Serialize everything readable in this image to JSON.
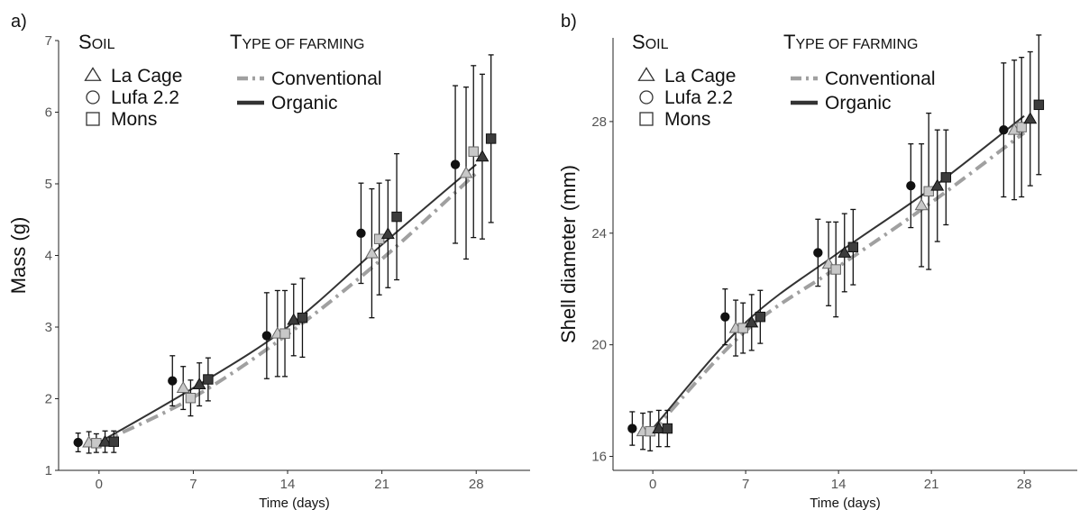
{
  "legend": {
    "soil_title_cap": "S",
    "soil_title_rest": "OIL",
    "farming_title_cap": "T",
    "farming_title_rest": "YPE OF FARMING",
    "soil_items": [
      {
        "label": "La Cage",
        "shape": "triangle"
      },
      {
        "label": "Lufa 2.2",
        "shape": "circle"
      },
      {
        "label": "Mons",
        "shape": "square"
      }
    ],
    "farming_items": [
      {
        "label": "Conventional",
        "style": "dash-dot",
        "color": "#a0a0a0"
      },
      {
        "label": "Organic",
        "style": "solid",
        "color": "#333333"
      }
    ]
  },
  "colors": {
    "conventional": "#a0a0a0",
    "conventional_marker": "#c8c8c8",
    "organic": "#333333",
    "lufa_marker": "#111111"
  },
  "chart_data": [
    {
      "panel_label": "a)",
      "type": "line",
      "xlabel": "Time (days)",
      "ylabel": "Mass (g)",
      "xlim": [
        -3,
        32
      ],
      "ylim": [
        1,
        7
      ],
      "xticks": [
        "0",
        "7",
        "14",
        "21",
        "28"
      ],
      "yticks": [
        "1",
        "2",
        "3",
        "4",
        "5",
        "6",
        "7"
      ],
      "grid": false,
      "legend_position": "top-left",
      "x": [
        0,
        7,
        14,
        21,
        28
      ],
      "series": [
        {
          "soil": "Lufa 2.2",
          "farming": "Organic",
          "values": [
            1.39,
            2.25,
            2.88,
            4.31,
            5.27
          ],
          "errors": [
            0.13,
            0.35,
            0.6,
            0.7,
            1.1
          ]
        },
        {
          "soil": "La Cage",
          "farming": "Conventional",
          "values": [
            1.39,
            2.15,
            2.91,
            4.03,
            5.15
          ],
          "errors": [
            0.15,
            0.3,
            0.6,
            0.9,
            1.2
          ]
        },
        {
          "soil": "Mons",
          "farming": "Conventional",
          "values": [
            1.38,
            2.01,
            2.91,
            4.23,
            5.45
          ],
          "errors": [
            0.13,
            0.25,
            0.6,
            0.78,
            1.2
          ]
        },
        {
          "soil": "La Cage",
          "farming": "Organic",
          "values": [
            1.4,
            2.2,
            3.1,
            4.3,
            5.38
          ],
          "errors": [
            0.15,
            0.3,
            0.5,
            0.75,
            1.15
          ]
        },
        {
          "soil": "Mons",
          "farming": "Organic",
          "values": [
            1.4,
            2.27,
            3.13,
            4.54,
            5.63
          ],
          "errors": [
            0.15,
            0.3,
            0.55,
            0.88,
            1.17
          ]
        }
      ],
      "trend_lines": [
        {
          "farming": "Conventional",
          "values": [
            1.38,
            2.02,
            2.9,
            3.95,
            5.15
          ]
        },
        {
          "farming": "Organic",
          "values": [
            1.39,
            2.15,
            3.0,
            4.15,
            5.27
          ]
        }
      ]
    },
    {
      "panel_label": "b)",
      "type": "line",
      "xlabel": "Time (days)",
      "ylabel": "Shell diameter (mm)",
      "xlim": [
        -3,
        32
      ],
      "ylim": [
        15.5,
        31
      ],
      "xticks": [
        "0",
        "7",
        "14",
        "21",
        "28"
      ],
      "yticks": [
        "16",
        "20",
        "24",
        "28"
      ],
      "grid": false,
      "legend_position": "top-left",
      "x": [
        0,
        7,
        14,
        21,
        28
      ],
      "series": [
        {
          "soil": "Lufa 2.2",
          "farming": "Organic",
          "values": [
            17.0,
            21.0,
            23.3,
            25.7,
            27.7
          ],
          "errors": [
            0.6,
            1.0,
            1.2,
            1.5,
            2.4
          ]
        },
        {
          "soil": "La Cage",
          "farming": "Conventional",
          "values": [
            16.9,
            20.6,
            22.9,
            25.0,
            27.7
          ],
          "errors": [
            0.65,
            1.0,
            1.5,
            2.2,
            2.5
          ]
        },
        {
          "soil": "Mons",
          "farming": "Conventional",
          "values": [
            16.9,
            20.6,
            22.7,
            25.5,
            27.8
          ],
          "errors": [
            0.7,
            0.9,
            1.7,
            2.8,
            2.5
          ]
        },
        {
          "soil": "La Cage",
          "farming": "Organic",
          "values": [
            17.0,
            20.8,
            23.3,
            25.7,
            28.1
          ],
          "errors": [
            0.65,
            1.0,
            1.4,
            2.0,
            2.4
          ]
        },
        {
          "soil": "Mons",
          "farming": "Organic",
          "values": [
            17.0,
            21.0,
            23.5,
            26.0,
            28.6
          ],
          "errors": [
            0.65,
            0.95,
            1.35,
            1.7,
            2.5
          ]
        }
      ],
      "trend_lines": [
        {
          "farming": "Conventional",
          "values": [
            16.9,
            20.5,
            22.8,
            25.1,
            27.6
          ]
        },
        {
          "farming": "Organic",
          "values": [
            17.0,
            20.8,
            23.3,
            25.6,
            28.2
          ]
        }
      ]
    }
  ]
}
